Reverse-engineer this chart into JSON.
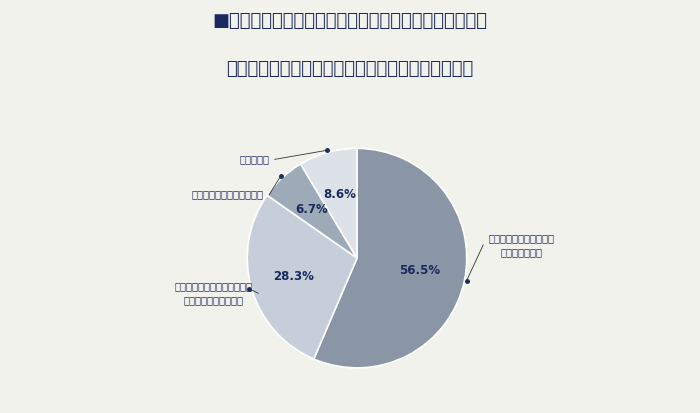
{
  "title_line1": "■新型コロナウイルス感染症の終息後のテレワーク制度",
  "title_line2": "について当てはまるものをお選びください（一つ）",
  "slices": [
    56.5,
    28.3,
    6.7,
    8.6
  ],
  "pct_labels": [
    "56.5%",
    "28.3%",
    "6.7%",
    "8.6%"
  ],
  "outside_labels": [
    "テレワーク制度を継続し\n利用を推奨する",
    "テレワーク制度は継続するが\n利用条件を厳しくする",
    "テレワーク制度を廃止する",
    "わからない"
  ],
  "colors": [
    "#8a95a5",
    "#c5ced9",
    "#9daab7",
    "#dce2e8"
  ],
  "background_color": "#f2f2ed",
  "title_color": "#1b2a5e",
  "line_color": "#333333",
  "startangle": 90
}
